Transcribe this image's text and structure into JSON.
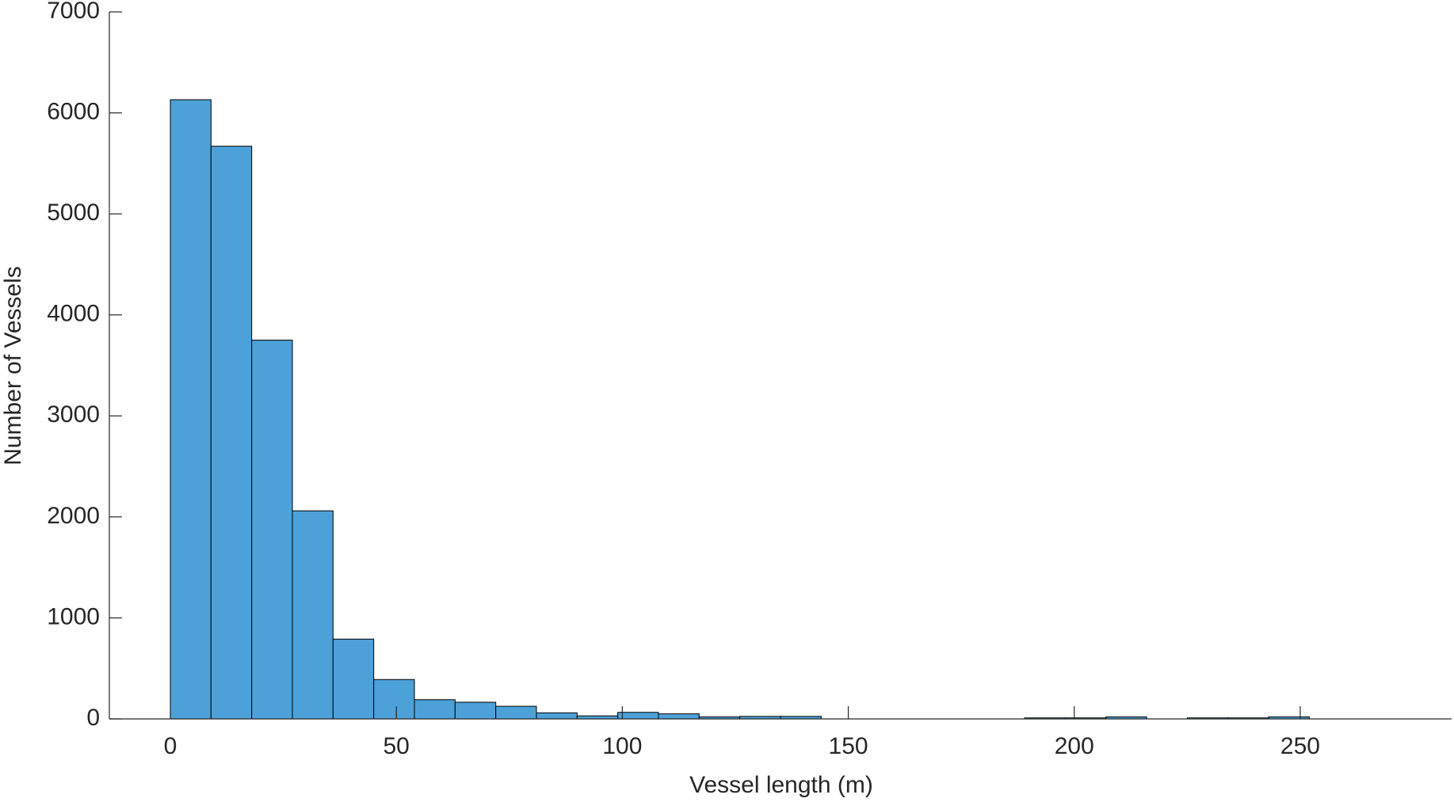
{
  "chart_data": {
    "type": "histogram",
    "x_label": "Vessel length (m)",
    "y_label": "Number of Vessels",
    "bins": [
      0,
      9,
      18,
      27,
      36,
      45,
      54,
      63,
      72,
      81,
      90,
      99,
      108,
      117,
      126,
      135,
      144,
      153,
      162,
      171,
      180,
      189,
      198,
      207,
      216,
      225,
      234,
      243,
      252
    ],
    "counts": [
      6130,
      5670,
      3750,
      2060,
      790,
      390,
      190,
      165,
      125,
      60,
      30,
      65,
      50,
      20,
      25,
      25,
      0,
      0,
      0,
      0,
      0,
      10,
      10,
      20,
      0,
      10,
      10,
      20
    ],
    "color": "#4da1d9",
    "xlim": [
      -13.5,
      283.5
    ],
    "ylim": [
      0,
      7000
    ],
    "xticks": [
      0,
      50,
      100,
      150,
      200,
      250
    ],
    "yticks": [
      0,
      1000,
      2000,
      3000,
      4000,
      5000,
      6000,
      7000
    ]
  }
}
